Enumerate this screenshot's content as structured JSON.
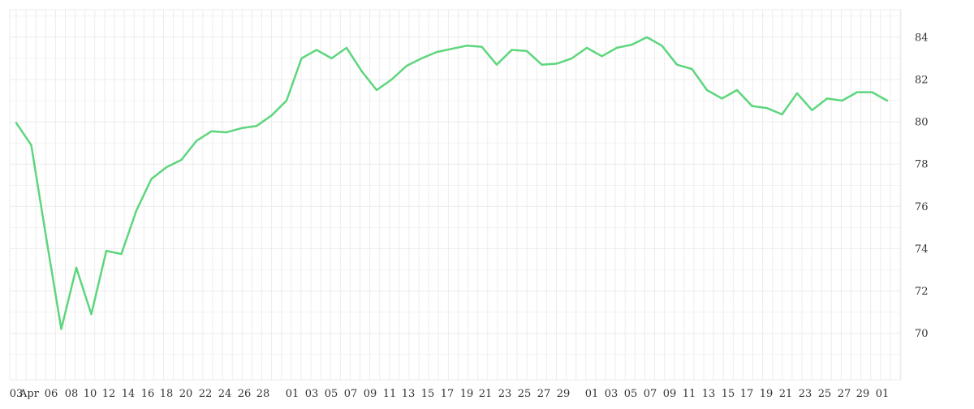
{
  "chart_data": {
    "type": "line",
    "title": "",
    "xlabel": "",
    "ylabel": "",
    "grid": true,
    "y_axis_side": "right",
    "ylim": [
      67.8,
      85.3
    ],
    "y_ticks": [
      70,
      72,
      74,
      76,
      78,
      80,
      82,
      84
    ],
    "x_tick_labels": [
      "03",
      "Apr",
      "06",
      "08",
      "10",
      "12",
      "14",
      "16",
      "18",
      "20",
      "22",
      "24",
      "26",
      "28",
      "01",
      "03",
      "05",
      "07",
      "09",
      "11",
      "13",
      "15",
      "17",
      "19",
      "21",
      "23",
      "25",
      "27",
      "29",
      "01",
      "03",
      "05",
      "07",
      "09",
      "11",
      "13",
      "15",
      "17",
      "19",
      "21",
      "23",
      "25",
      "27",
      "29",
      "01"
    ],
    "line_color": "#5dd67d",
    "grid_color": "#ececec",
    "series": [
      {
        "values": [
          79.95,
          78.9,
          74.5,
          70.2,
          73.1,
          70.9,
          73.9,
          73.75,
          75.8,
          77.3,
          77.85,
          78.2,
          79.1,
          79.55,
          79.5,
          79.7,
          79.8,
          80.3,
          81.0,
          83.0,
          83.4,
          83.0,
          83.5,
          82.4,
          81.5,
          82.0,
          82.65,
          83.0,
          83.3,
          83.45,
          83.6,
          83.55,
          82.7,
          83.4,
          83.35,
          82.7,
          82.75,
          83.0,
          83.5,
          83.1,
          83.5,
          83.65,
          84.0,
          83.6,
          82.7,
          82.5,
          81.5,
          81.1,
          81.5,
          80.75,
          80.65,
          80.35,
          81.35,
          80.55,
          81.1,
          81.0,
          81.4,
          81.4,
          81.0
        ]
      }
    ]
  }
}
